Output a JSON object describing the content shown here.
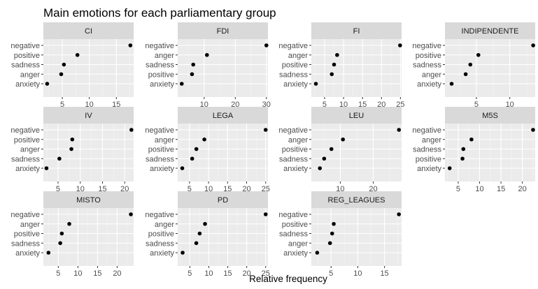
{
  "chart_data": {
    "type": "dot-facet",
    "title": "Main emotions for each parliamentary group",
    "xlabel": "Relative frequency",
    "ylabel": "",
    "grid": true,
    "colors": {
      "panel_bg": "#ebebeb",
      "strip_bg": "#d9d9d9",
      "grid_major": "#ffffff",
      "grid_minor": "#f5f5f5",
      "point": "#000000",
      "tick": "#333333"
    },
    "panels": [
      {
        "name": "CI",
        "xlim": [
          1.5,
          18.2
        ],
        "xticks": [
          5,
          10,
          15
        ],
        "categories": [
          "negative",
          "positive",
          "sadness",
          "anger",
          "anxiety"
        ],
        "values": [
          17.6,
          7.8,
          5.3,
          4.8,
          2.2
        ]
      },
      {
        "name": "FDI",
        "xlim": [
          1.5,
          30.5
        ],
        "xticks": [
          10,
          20,
          30
        ],
        "categories": [
          "negative",
          "anger",
          "sadness",
          "positive",
          "anxiety"
        ],
        "values": [
          30.0,
          10.9,
          6.5,
          6.1,
          2.8
        ]
      },
      {
        "name": "FI",
        "xlim": [
          1.5,
          25.3
        ],
        "xticks": [
          5,
          10,
          15,
          20,
          25
        ],
        "categories": [
          "negative",
          "anger",
          "positive",
          "sadness",
          "anxiety"
        ],
        "values": [
          24.9,
          8.3,
          7.5,
          6.9,
          2.7
        ]
      },
      {
        "name": "INDIPENDENTE",
        "xlim": [
          0.3,
          13.8
        ],
        "xticks": [
          5,
          10
        ],
        "categories": [
          "negative",
          "positive",
          "sadness",
          "anger",
          "anxiety"
        ],
        "values": [
          13.5,
          5.3,
          4.1,
          3.4,
          1.3
        ]
      },
      {
        "name": "IV",
        "xlim": [
          1.7,
          22.0
        ],
        "xticks": [
          5,
          10,
          15,
          20
        ],
        "categories": [
          "negative",
          "positive",
          "anger",
          "sadness",
          "anxiety"
        ],
        "values": [
          21.5,
          8.2,
          8.0,
          5.3,
          2.4
        ]
      },
      {
        "name": "LEGA",
        "xlim": [
          1.9,
          25.6
        ],
        "xticks": [
          5,
          10,
          15,
          20,
          25
        ],
        "categories": [
          "negative",
          "anger",
          "positive",
          "sadness",
          "anxiety"
        ],
        "values": [
          25.0,
          8.9,
          6.8,
          5.7,
          3.1
        ]
      },
      {
        "name": "LEU",
        "xlim": [
          1.2,
          28.6
        ],
        "xticks": [
          10,
          20
        ],
        "categories": [
          "negative",
          "anger",
          "positive",
          "sadness",
          "anxiety"
        ],
        "values": [
          27.8,
          10.8,
          7.3,
          5.1,
          3.8
        ]
      },
      {
        "name": "M5S",
        "xlim": [
          1.9,
          23.0
        ],
        "xticks": [
          5,
          10,
          15,
          20
        ],
        "categories": [
          "negative",
          "anger",
          "sadness",
          "positive",
          "anxiety"
        ],
        "values": [
          22.5,
          8.1,
          6.2,
          6.0,
          3.0
        ]
      },
      {
        "name": "MISTO",
        "xlim": [
          1.2,
          24.2
        ],
        "xticks": [
          5,
          10,
          15,
          20
        ],
        "categories": [
          "negative",
          "anger",
          "positive",
          "sadness",
          "anxiety"
        ],
        "values": [
          23.5,
          7.8,
          5.9,
          5.5,
          2.5
        ]
      },
      {
        "name": "PD",
        "xlim": [
          1.8,
          25.6
        ],
        "xticks": [
          5,
          10,
          15,
          20,
          25
        ],
        "categories": [
          "negative",
          "anger",
          "positive",
          "sadness",
          "anxiety"
        ],
        "values": [
          25.0,
          9.0,
          7.6,
          6.7,
          3.1
        ]
      },
      {
        "name": "REG_LEAGUES",
        "xlim": [
          1.3,
          18.2
        ],
        "xticks": [
          5,
          10,
          15
        ],
        "categories": [
          "negative",
          "positive",
          "sadness",
          "anger",
          "anxiety"
        ],
        "values": [
          17.7,
          5.5,
          5.2,
          4.8,
          2.4
        ]
      }
    ]
  }
}
